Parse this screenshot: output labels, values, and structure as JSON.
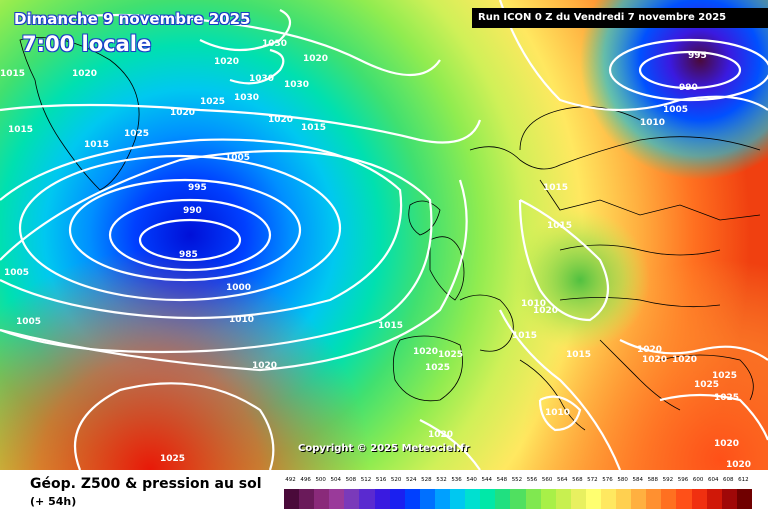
{
  "header": {
    "date": "Dimanche 9 novembre 2025",
    "time": "7:00 locale",
    "run": "Run ICON 0 Z du Vendredi 7 novembre 2025"
  },
  "footer": {
    "title": "Géop. Z500 & pression au sol",
    "subtitle": "(+ 54h)"
  },
  "copyright": "Copyright © 2025 Meteociel.fr",
  "legend": {
    "labels": [
      "492",
      "496",
      "500",
      "504",
      "508",
      "512",
      "516",
      "520",
      "524",
      "528",
      "532",
      "536",
      "540",
      "544",
      "548",
      "552",
      "556",
      "560",
      "564",
      "568",
      "572",
      "576",
      "580",
      "584",
      "588",
      "592",
      "596",
      "600",
      "604",
      "608",
      "612"
    ],
    "colors": [
      "#4a0a3a",
      "#6a1a5a",
      "#8a2a7a",
      "#9a3a9a",
      "#7a3aba",
      "#5a2ad0",
      "#3a1ae0",
      "#1a20f0",
      "#0040ff",
      "#0070ff",
      "#00a0ff",
      "#00c8f0",
      "#00e0d0",
      "#00e8a8",
      "#20e080",
      "#50e060",
      "#80e850",
      "#a8f048",
      "#c8f050",
      "#e8f060",
      "#ffff70",
      "#ffe860",
      "#ffd050",
      "#ffb040",
      "#ff9030",
      "#ff7020",
      "#ff5018",
      "#f03010",
      "#d01808",
      "#a00808",
      "#700000"
    ]
  },
  "pressure_labels": [
    {
      "text": "1030"
    },
    {
      "text": "1020"
    },
    {
      "text": "1015"
    },
    {
      "text": "1020"
    },
    {
      "text": "1020"
    },
    {
      "text": "1030"
    },
    {
      "text": "1030"
    },
    {
      "text": "1030"
    },
    {
      "text": "1020"
    },
    {
      "text": "1025"
    },
    {
      "text": "1020"
    },
    {
      "text": "1015"
    },
    {
      "text": "1025"
    },
    {
      "text": "1015"
    },
    {
      "text": "1005"
    },
    {
      "text": "995"
    },
    {
      "text": "990"
    },
    {
      "text": "985"
    },
    {
      "text": "1000"
    },
    {
      "text": "1010"
    },
    {
      "text": "1005"
    },
    {
      "text": "1005"
    },
    {
      "text": "1020"
    },
    {
      "text": "1025"
    },
    {
      "text": "1015"
    },
    {
      "text": "1015"
    },
    {
      "text": "1015"
    },
    {
      "text": "1010"
    },
    {
      "text": "1020"
    },
    {
      "text": "1015"
    },
    {
      "text": "1020"
    },
    {
      "text": "1025"
    },
    {
      "text": "1025"
    },
    {
      "text": "1015"
    },
    {
      "text": "1010"
    },
    {
      "text": "1020"
    },
    {
      "text": "1020"
    },
    {
      "text": "1020"
    },
    {
      "text": "1020"
    },
    {
      "text": "1025"
    },
    {
      "text": "1025"
    },
    {
      "text": "1025"
    },
    {
      "text": "1020"
    },
    {
      "text": "1020"
    },
    {
      "text": "995"
    },
    {
      "text": "990"
    },
    {
      "text": "1005"
    },
    {
      "text": "1010"
    },
    {
      "text": "1015"
    }
  ]
}
